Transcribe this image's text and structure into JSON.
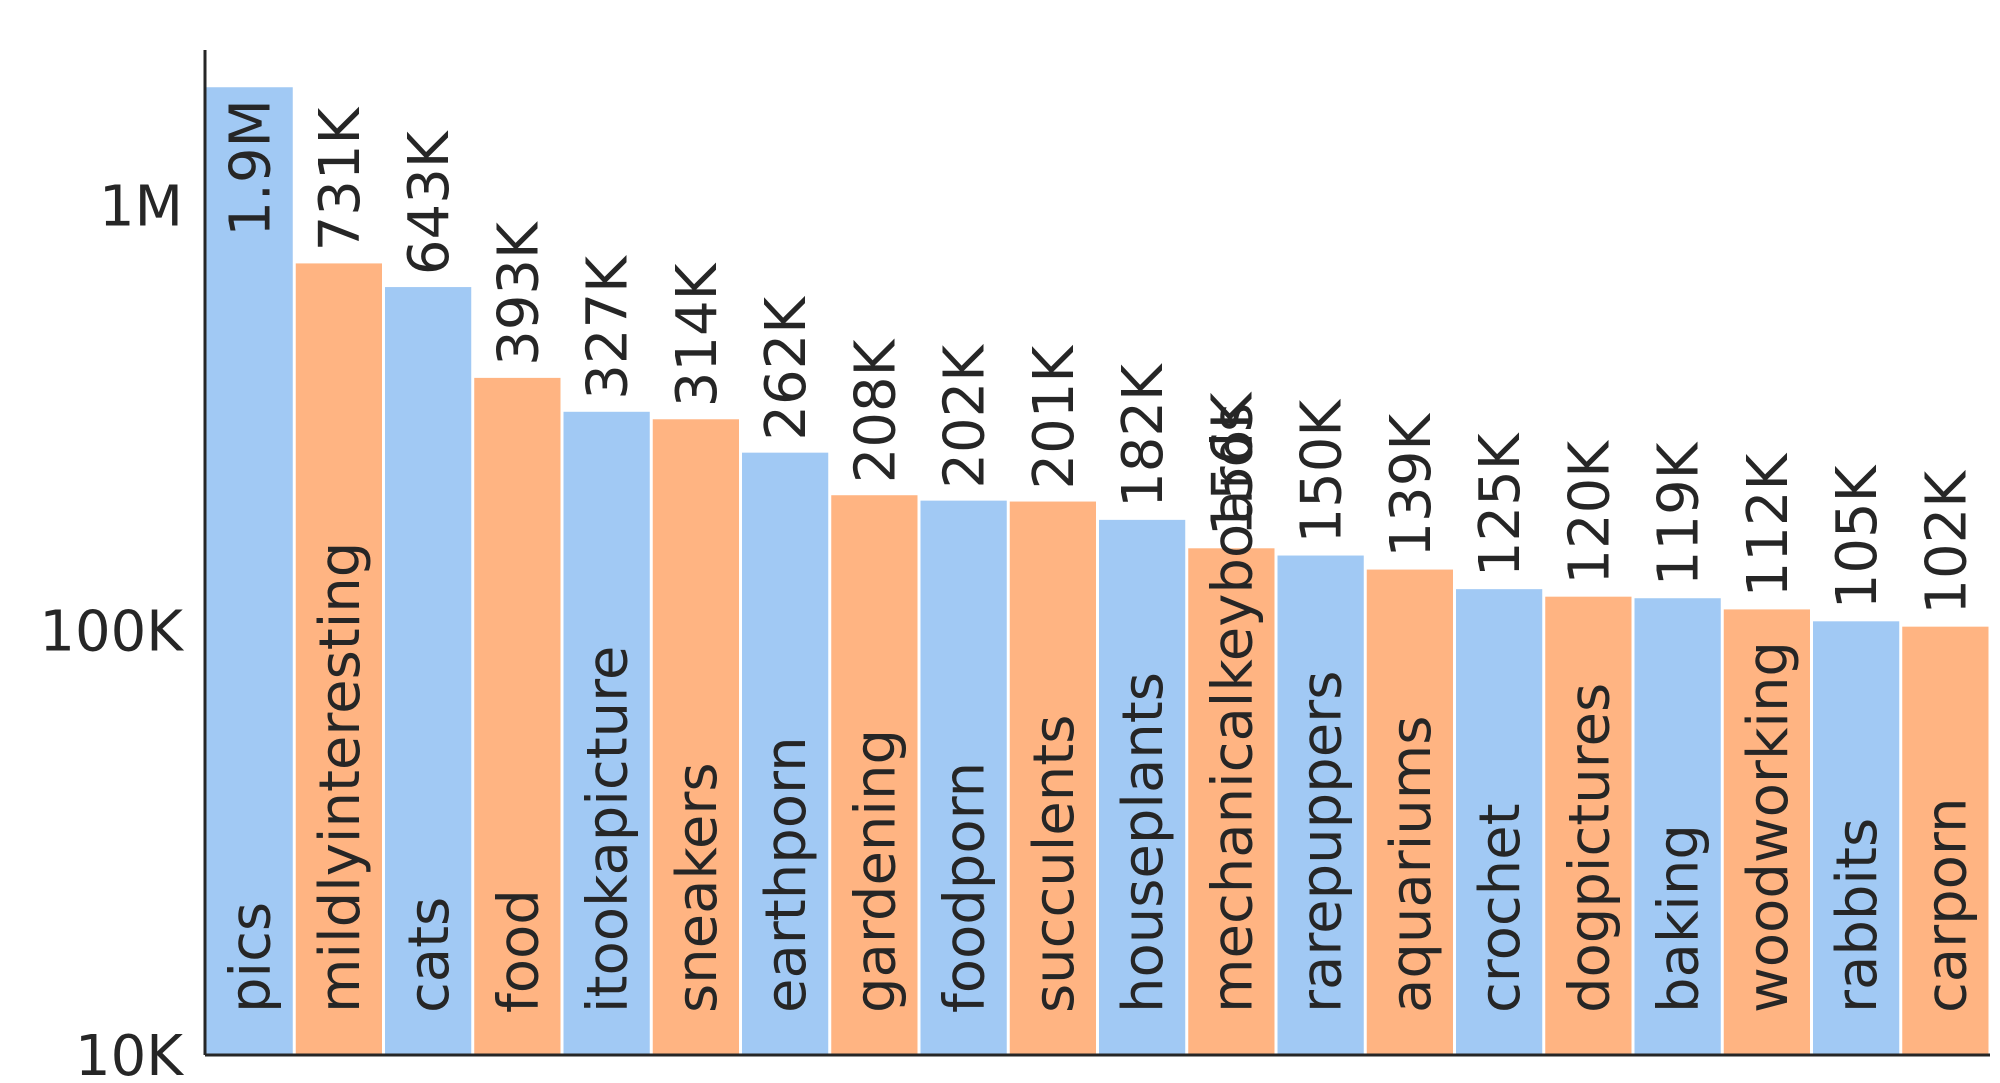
{
  "chart_data": {
    "type": "bar",
    "yscale": "log",
    "ylim": [
      10000,
      2300000
    ],
    "yticks": [
      {
        "value": 1000000,
        "label": "1M"
      },
      {
        "value": 100000,
        "label": "100K"
      },
      {
        "value": 10000,
        "label": "10K"
      }
    ],
    "grid": false,
    "colors": {
      "even": "#a1c9f4",
      "odd": "#ffb482"
    },
    "categories": [
      "pics",
      "mildlyinteresting",
      "cats",
      "food",
      "itookapicture",
      "sneakers",
      "earthporn",
      "gardening",
      "foodporn",
      "succulents",
      "houseplants",
      "mechanicalkeyboards",
      "rarepuppers",
      "aquariums",
      "crochet",
      "dogpictures",
      "baking",
      "woodworking",
      "rabbits",
      "carporn"
    ],
    "values": [
      1900000,
      731000,
      643000,
      393000,
      327000,
      314000,
      262000,
      208000,
      202000,
      201000,
      182000,
      156000,
      150000,
      139000,
      125000,
      120000,
      119000,
      112000,
      105000,
      102000
    ],
    "value_labels": [
      "1.9M",
      "731K",
      "643K",
      "393K",
      "327K",
      "314K",
      "262K",
      "208K",
      "202K",
      "201K",
      "182K",
      "156K",
      "150K",
      "139K",
      "125K",
      "120K",
      "119K",
      "112K",
      "105K",
      "102K"
    ]
  }
}
